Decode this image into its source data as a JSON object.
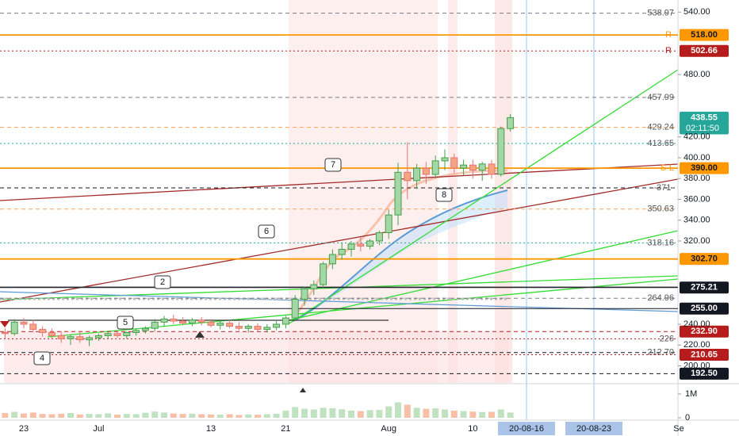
{
  "chart_data": {
    "type": "candlestick",
    "categories": [
      null,
      null,
      "23",
      null,
      null,
      null,
      null,
      null,
      null,
      null,
      "Jul",
      null,
      null,
      null,
      null,
      null,
      null,
      null,
      null,
      null,
      null,
      null,
      "13",
      null,
      null,
      null,
      null,
      null,
      null,
      null,
      "21",
      null,
      null,
      null,
      null,
      null,
      null,
      null,
      null,
      null,
      null,
      "Aug",
      null,
      null,
      null,
      null,
      null,
      null,
      null,
      null,
      "10",
      null,
      null,
      null,
      null,
      null,
      null,
      null,
      null,
      null,
      null,
      null,
      null,
      null,
      null,
      null,
      null,
      null,
      null,
      null,
      null,
      null,
      "Se"
    ],
    "open": [
      232,
      231,
      242,
      240,
      235,
      232,
      229,
      226,
      228,
      225,
      227,
      229,
      231,
      229,
      232,
      234,
      236,
      242,
      245,
      243,
      241,
      244,
      242,
      239,
      241,
      238,
      236,
      238,
      235,
      237,
      240,
      246,
      264,
      274,
      278,
      298,
      307,
      312,
      317,
      315,
      320,
      328,
      345,
      386,
      378,
      390,
      384,
      397,
      400,
      390,
      393,
      388,
      394,
      384,
      428,
      null,
      null,
      null,
      null,
      null,
      null,
      null,
      null,
      null,
      null,
      null,
      null,
      null,
      null,
      null,
      null,
      null,
      null
    ],
    "high": [
      236,
      245,
      246,
      244,
      238,
      236,
      233,
      230,
      232,
      229,
      231,
      233,
      234,
      233,
      236,
      238,
      245,
      248,
      249,
      247,
      246,
      247,
      245,
      243,
      244,
      242,
      240,
      241,
      240,
      243,
      248,
      268,
      276,
      282,
      300,
      312,
      318,
      320,
      324,
      322,
      330,
      350,
      395,
      415,
      394,
      396,
      402,
      408,
      404,
      398,
      398,
      396,
      398,
      430,
      442,
      null,
      null,
      null,
      null,
      null,
      null,
      null,
      null,
      null,
      null,
      null,
      null,
      null,
      null,
      null,
      null,
      null,
      null
    ],
    "low": [
      226,
      229,
      236,
      232,
      228,
      226,
      222,
      220,
      222,
      219,
      224,
      226,
      227,
      226,
      229,
      231,
      233,
      238,
      240,
      239,
      238,
      239,
      237,
      235,
      236,
      234,
      232,
      233,
      232,
      234,
      236,
      243,
      258,
      268,
      275,
      293,
      302,
      305,
      310,
      312,
      316,
      322,
      335,
      360,
      370,
      375,
      380,
      388,
      385,
      383,
      380,
      378,
      380,
      382,
      425,
      null,
      null,
      null,
      null,
      null,
      null,
      null,
      null,
      null,
      null,
      null,
      null,
      null,
      null,
      null,
      null,
      null,
      null
    ],
    "close": [
      231,
      242,
      240,
      235,
      232,
      229,
      226,
      228,
      225,
      227,
      229,
      231,
      229,
      232,
      234,
      236,
      242,
      245,
      243,
      241,
      244,
      242,
      239,
      241,
      238,
      236,
      238,
      235,
      237,
      240,
      246,
      264,
      274,
      278,
      298,
      307,
      312,
      317,
      315,
      320,
      328,
      345,
      386,
      378,
      390,
      384,
      397,
      400,
      390,
      393,
      388,
      394,
      384,
      428,
      438.55,
      null,
      null,
      null,
      null,
      null,
      null,
      null,
      null,
      null,
      null,
      null,
      null,
      null,
      null,
      null,
      null,
      null,
      null
    ],
    "volume": [
      200000,
      250000,
      180000,
      220000,
      160000,
      150000,
      170000,
      200000,
      140000,
      160000,
      150000,
      180000,
      130000,
      160000,
      150000,
      210000,
      260000,
      220000,
      180000,
      160000,
      170000,
      150000,
      140000,
      130000,
      150000,
      120000,
      140000,
      130000,
      150000,
      170000,
      300000,
      450000,
      380000,
      350000,
      420000,
      400000,
      360000,
      300000,
      280000,
      320000,
      330000,
      480000,
      650000,
      550000,
      420000,
      380000,
      400000,
      350000,
      300000,
      280000,
      260000,
      240000,
      250000,
      350000,
      220000,
      null,
      null,
      null,
      null,
      null,
      null,
      null,
      null,
      null,
      null,
      null,
      null,
      null,
      null,
      null,
      null,
      null,
      null
    ],
    "up_color": "#a5d6a7",
    "down_color": "#f4a582",
    "ylim": [
      183.6,
      551.6
    ],
    "yticks": [
      {
        "value": 540,
        "label": "540.00"
      },
      {
        "value": 480,
        "label": "480.00"
      },
      {
        "value": 420,
        "label": "420.00"
      },
      {
        "value": 400,
        "label": "400.00"
      },
      {
        "value": 380,
        "label": "380.00"
      },
      {
        "value": 360,
        "label": "360.00"
      },
      {
        "value": 340,
        "label": "340.00"
      },
      {
        "value": 320,
        "label": "320.00"
      },
      {
        "value": 240,
        "label": "240.00"
      },
      {
        "value": 220,
        "label": "220.00"
      },
      {
        "value": 200,
        "label": "200.00"
      }
    ],
    "vlim": [
      0,
      1400000
    ],
    "vticks": [
      {
        "value": 1000000,
        "label": "1M"
      },
      0
    ],
    "price_lines": [
      {
        "value": 538.97,
        "label": "538.97",
        "style": "dashed",
        "color": "#787b86"
      },
      {
        "value": 518,
        "label": "518.00",
        "style": "solid",
        "color": "#ff9800",
        "tag": true,
        "marker": "R"
      },
      {
        "value": 502.66,
        "label": "502.66",
        "style": "dotted",
        "color": "#b71c1c",
        "tag": true,
        "marker": "R"
      },
      {
        "value": 457.99,
        "label": "457.99",
        "style": "dashed",
        "color": "#787b86"
      },
      {
        "value": 438.55,
        "label": "438.55",
        "style": "none",
        "color": "#26a69a",
        "tag": true
      },
      {
        "value": 429.24,
        "label": "429.24",
        "style": "dashed",
        "color": "#f7a35c"
      },
      {
        "value": 413.65,
        "label": "413.65",
        "style": "dotted",
        "color": "#26a69a"
      },
      {
        "value": 390,
        "label": "390.00",
        "style": "solid",
        "color": "#ff9800",
        "tag": true,
        "marker": "S-L"
      },
      {
        "value": 371,
        "label": "-371-",
        "style": "dashed",
        "color": "#131722"
      },
      {
        "value": 350.63,
        "label": "350.63",
        "style": "dashed",
        "color": "#f7a35c"
      },
      {
        "value": 318.16,
        "label": "318.16",
        "style": "dotted",
        "color": "#26a69a"
      },
      {
        "value": 302.7,
        "label": "302.70",
        "style": "solid",
        "color": "#ff9800",
        "tag": true
      },
      {
        "value": 275.21,
        "label": "275.21",
        "style": "solid",
        "color": "#131722",
        "tag": true
      },
      {
        "value": 264.96,
        "label": "264.96",
        "style": "dashed",
        "color": "#787b86"
      },
      {
        "value": 255,
        "label": "255.00",
        "style": "solid",
        "color": "#131722",
        "tag": true
      },
      {
        "value": 232.9,
        "label": "232.90",
        "style": "dashed",
        "color": "#b71c1c",
        "tag": true
      },
      {
        "value": 226,
        "label": "226",
        "style": "dotted",
        "color": "#b71c1c"
      },
      {
        "value": 212.7,
        "label": "212.70",
        "style": "dashed",
        "color": "#131722"
      },
      {
        "value": 210.65,
        "label": "210.65",
        "style": "dotted",
        "color": "#b71c1c",
        "tag": true
      },
      {
        "value": 192.5,
        "label": "192.50",
        "style": "dashed",
        "color": "#131722",
        "tag": true
      }
    ],
    "countdown": "02:11:50",
    "date_tags": [
      "20-08-16",
      "20-08-23"
    ],
    "annotations": [
      "2",
      "4",
      "5",
      "6",
      "7",
      "8"
    ]
  }
}
